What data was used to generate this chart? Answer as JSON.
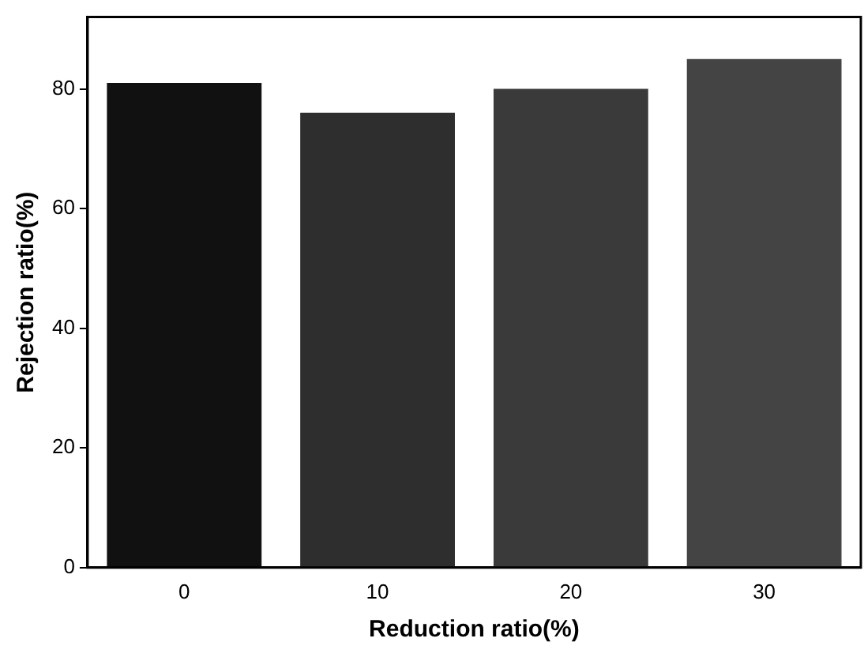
{
  "chart_data": {
    "type": "bar",
    "xlabel": "Reduction ratio(%)",
    "ylabel": "Rejection ratio(%)",
    "categories": [
      "0",
      "10",
      "20",
      "30"
    ],
    "values": [
      81,
      76,
      80,
      85
    ],
    "colors": [
      "#111111",
      "#2e2e2e",
      "#3a3a3a",
      "#444444"
    ],
    "ylim": [
      0,
      92
    ],
    "yticks": [
      0,
      20,
      40,
      60,
      80
    ],
    "grid": false,
    "legend": false
  }
}
